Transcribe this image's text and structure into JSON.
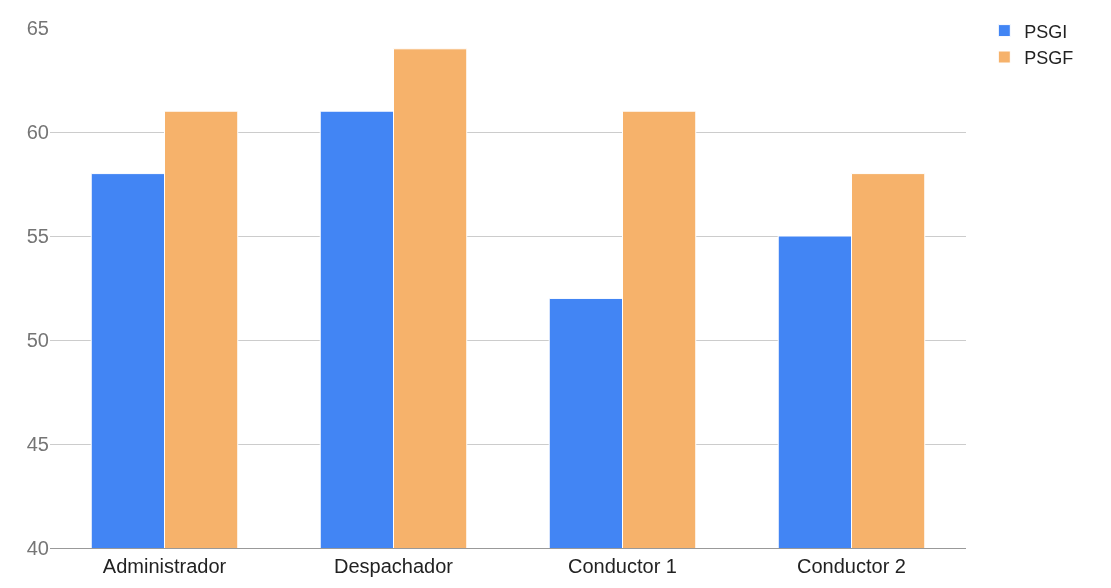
{
  "chart_data": {
    "type": "bar",
    "categories": [
      "Administrador",
      "Despachador",
      "Conductor 1",
      "Conductor 2"
    ],
    "series": [
      {
        "name": "PSGI",
        "color": "#4285f4",
        "values": [
          58,
          61,
          52,
          55
        ]
      },
      {
        "name": "PSGF",
        "color": "#f6b26b",
        "values": [
          61,
          64,
          61,
          58
        ]
      }
    ],
    "ylim": [
      40,
      65
    ],
    "yticks": [
      40,
      45,
      50,
      55,
      60,
      65
    ],
    "grid": "y",
    "legend": "top right"
  }
}
